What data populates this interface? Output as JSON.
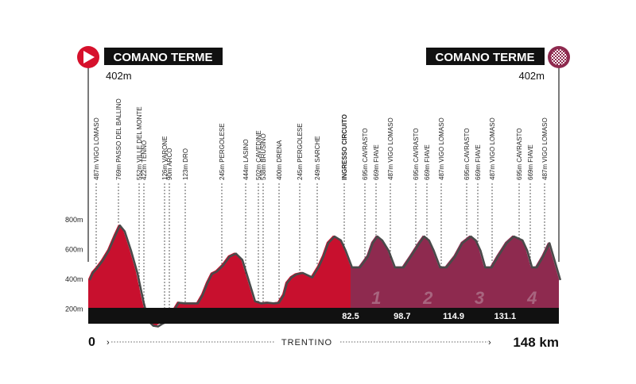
{
  "chart_data": {
    "type": "area",
    "start": {
      "name": "COMANO TERME",
      "altitude": "402m"
    },
    "finish": {
      "name": "COMANO TERME",
      "altitude": "402m"
    },
    "x_start_label": "0",
    "x_end_label": "148 km",
    "region": "TRENTINO",
    "xlim": [
      0,
      148
    ],
    "ylim": [
      0,
      950
    ],
    "y_ticks": [
      "200m",
      "400m",
      "600m",
      "800m"
    ],
    "y_tick_values": [
      200,
      400,
      600,
      800
    ],
    "circuit_km_labels": [
      "82.5",
      "98.7",
      "114.9",
      "131.1"
    ],
    "circuit_km_values": [
      82.5,
      98.7,
      114.9,
      131.1
    ],
    "circuit_laps": [
      "1",
      "2",
      "3",
      "4"
    ],
    "circuit_start_km": 82.5,
    "profile": {
      "x": [
        0,
        1,
        2.5,
        4,
        6,
        8,
        9.5,
        11,
        13,
        15,
        17,
        18.5,
        20,
        21.5,
        23,
        24.5,
        26,
        28,
        30,
        32,
        34,
        35.5,
        37,
        38.5,
        40,
        42,
        44,
        46,
        48,
        50,
        52,
        54,
        56,
        58,
        59.5,
        61,
        62,
        63.5,
        65,
        67,
        70,
        72,
        73.5,
        75,
        77,
        79,
        80.5,
        82.5,
        85,
        87.5,
        89,
        90.5,
        92,
        94,
        96,
        98.7,
        101,
        103.7,
        105.2,
        106.7,
        108.2,
        110.2,
        112.2,
        114.9,
        117.2,
        119.9,
        121.4,
        122.9,
        124.4,
        126.4,
        128.4,
        131.1,
        133.4,
        136.1,
        137.6,
        139.1,
        140.6,
        142.6,
        144.6,
        148
      ],
      "y": [
        402,
        450,
        487,
        530,
        600,
        700,
        769,
        730,
        600,
        450,
        250,
        126,
        95,
        90,
        110,
        123,
        180,
        250,
        245,
        245,
        245,
        300,
        380,
        444,
        460,
        502,
        560,
        580,
        538,
        400,
        260,
        245,
        250,
        245,
        249,
        300,
        380,
        420,
        440,
        450,
        420,
        490,
        560,
        650,
        695,
        669,
        600,
        487,
        487,
        560,
        650,
        695,
        669,
        600,
        487,
        487,
        560,
        650,
        695,
        669,
        600,
        487,
        487,
        560,
        650,
        695,
        669,
        600,
        487,
        487,
        560,
        650,
        695,
        669,
        600,
        487,
        487,
        560,
        650,
        402
      ]
    },
    "waypoints": [
      {
        "km": 2.5,
        "label": "487m VIGO LOMASO"
      },
      {
        "km": 9.5,
        "label": "769m PASSO DEL BALLINO"
      },
      {
        "km": 16,
        "label": "552m VILLE DEL MONTE"
      },
      {
        "km": 17.5,
        "label": "422m TENNO"
      },
      {
        "km": 24,
        "label": "126m VARONE"
      },
      {
        "km": 25.5,
        "label": "90m ARCO"
      },
      {
        "km": 30.5,
        "label": "123m DRO"
      },
      {
        "km": 42,
        "label": "245m PERGOLESE"
      },
      {
        "km": 49.5,
        "label": "444m LASINO"
      },
      {
        "km": 53.5,
        "label": "502m CAVEDINE"
      },
      {
        "km": 55,
        "label": "538m BRUSINO"
      },
      {
        "km": 60,
        "label": "400m DRENA"
      },
      {
        "km": 66.5,
        "label": "245m PERGOLESE"
      },
      {
        "km": 72,
        "label": "249m SARCHE"
      },
      {
        "km": 80.5,
        "label": "INGRESSO CIRCUITO",
        "bold": true
      },
      {
        "km": 87,
        "label": "695m CAVRASTO"
      },
      {
        "km": 90.5,
        "label": "669m FIAVE"
      },
      {
        "km": 95,
        "label": "487m VIGO LOMASO"
      },
      {
        "km": 103,
        "label": "695m CAVRASTO"
      },
      {
        "km": 106.5,
        "label": "669m FIAVE"
      },
      {
        "km": 111,
        "label": "487m VIGO LOMASO"
      },
      {
        "km": 119,
        "label": "695m CAVRASTO"
      },
      {
        "km": 122.5,
        "label": "669m FIAVE"
      },
      {
        "km": 127,
        "label": "487m VIGO LOMASO"
      },
      {
        "km": 135.5,
        "label": "695m CAVRASTO"
      },
      {
        "km": 139,
        "label": "669m FIAVE"
      },
      {
        "km": 143.5,
        "label": "487m VIGO LOMASO"
      }
    ],
    "colors": {
      "route": "#c8102e",
      "circuit": "#8e2a4f",
      "shade": "#555555",
      "bar": "#111111"
    },
    "icons": {
      "start": "start-play-icon",
      "finish": "finish-flag-icon"
    },
    "grid": false
  }
}
